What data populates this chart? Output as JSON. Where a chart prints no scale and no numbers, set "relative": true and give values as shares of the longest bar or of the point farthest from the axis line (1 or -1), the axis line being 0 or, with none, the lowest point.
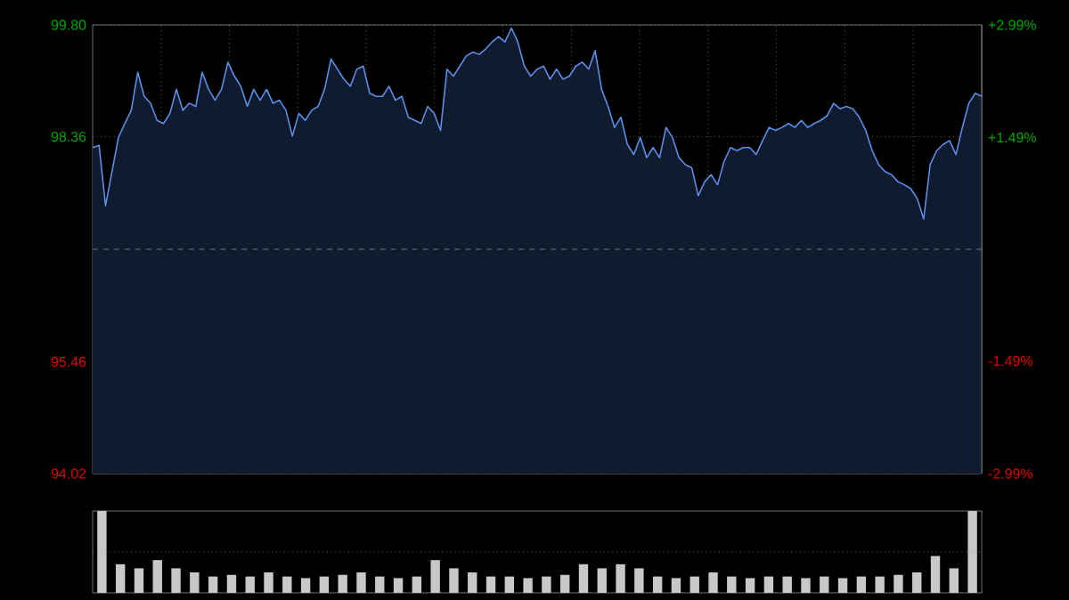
{
  "chart_data": [
    {
      "type": "area",
      "categories": [
        null,
        null,
        null,
        null,
        null,
        null,
        null,
        null,
        null,
        null,
        null,
        null,
        null,
        null,
        null,
        null,
        null,
        null,
        null,
        null,
        null,
        null,
        null,
        null,
        null,
        null,
        null,
        null,
        null,
        null,
        null,
        null,
        null,
        null,
        null,
        null,
        null,
        null,
        null,
        null,
        null,
        null,
        null,
        null,
        null,
        null,
        null,
        null,
        null,
        null,
        null,
        null,
        null,
        null,
        null,
        null,
        null,
        null,
        null,
        null,
        null,
        null,
        null,
        null,
        null,
        null,
        null,
        null,
        null,
        null,
        null,
        null,
        null,
        null,
        null,
        null,
        null,
        null,
        null,
        null,
        null,
        null,
        null,
        null,
        null,
        null,
        null,
        null,
        null,
        null,
        null,
        null,
        null,
        null,
        null,
        null,
        null,
        null,
        null,
        null,
        null,
        null,
        null,
        null,
        null,
        null,
        null,
        null,
        null,
        null,
        null,
        null,
        null,
        null,
        null,
        null,
        null,
        null,
        null,
        null,
        null,
        null,
        null,
        null,
        null,
        null,
        null,
        null,
        null,
        null,
        null,
        null,
        null,
        null,
        null,
        null,
        null,
        null,
        null
      ],
      "values": [
        98.22,
        98.25,
        97.47,
        97.91,
        98.35,
        98.53,
        98.7,
        99.19,
        98.88,
        98.79,
        98.57,
        98.53,
        98.66,
        98.97,
        98.7,
        98.79,
        98.75,
        99.19,
        98.97,
        98.83,
        98.97,
        99.32,
        99.14,
        99.01,
        98.75,
        98.97,
        98.83,
        98.97,
        98.79,
        98.83,
        98.7,
        98.37,
        98.66,
        98.57,
        98.7,
        98.75,
        98.97,
        99.36,
        99.23,
        99.1,
        99.01,
        99.23,
        99.27,
        98.92,
        98.88,
        98.88,
        99.01,
        98.83,
        98.88,
        98.61,
        98.57,
        98.53,
        98.75,
        98.66,
        98.44,
        99.23,
        99.14,
        99.27,
        99.4,
        99.45,
        99.42,
        99.49,
        99.58,
        99.65,
        99.58,
        99.76,
        99.58,
        99.27,
        99.14,
        99.23,
        99.27,
        99.1,
        99.23,
        99.1,
        99.14,
        99.27,
        99.32,
        99.23,
        99.47,
        98.97,
        98.75,
        98.48,
        98.61,
        98.26,
        98.13,
        98.35,
        98.09,
        98.22,
        98.09,
        98.48,
        98.35,
        98.09,
        98.0,
        97.96,
        97.6,
        97.78,
        97.87,
        97.74,
        98.04,
        98.22,
        98.18,
        98.22,
        98.22,
        98.13,
        98.31,
        98.48,
        98.44,
        98.48,
        98.53,
        98.48,
        98.57,
        98.48,
        98.53,
        98.57,
        98.63,
        98.79,
        98.72,
        98.75,
        98.72,
        98.61,
        98.44,
        98.18,
        98.0,
        97.91,
        97.87,
        97.78,
        97.74,
        97.69,
        97.56,
        97.3,
        98.0,
        98.18,
        98.26,
        98.31,
        98.13,
        98.48,
        98.79,
        98.92,
        98.88
      ],
      "color": "#5b8ee6",
      "ylim": [
        94.02,
        99.8
      ],
      "yticks": [
        94.02,
        95.46,
        98.36,
        {
          "value": 99.8,
          "label": "99.80"
        }
      ],
      "y2lim": [
        -2.99,
        2.99
      ],
      "y2ticks": [
        {
          "value": -2.99,
          "label": "-2.99%"
        },
        {
          "value": -1.49,
          "label": "-1.49%"
        },
        {
          "value": 1.49,
          "label": "+1.49%"
        },
        {
          "value": 2.99,
          "label": "+2.99%"
        }
      ],
      "ref_lines": [
        {
          "axis": "y",
          "value": 96.91,
          "line_style": "dashed"
        }
      ],
      "grid": true
    },
    {
      "type": "bar",
      "relative": true,
      "color": "#c8c8c8",
      "ref_lines": [
        {
          "axis": "y",
          "value": 0.5,
          "line_style": "dotted"
        }
      ],
      "categories": [
        null,
        null,
        null,
        null,
        null,
        null,
        null,
        null,
        null,
        null,
        null,
        null,
        null,
        null,
        null,
        null,
        null,
        null,
        null,
        null,
        null,
        null,
        null,
        null,
        null,
        null,
        null,
        null,
        null,
        null,
        null,
        null,
        null,
        null,
        null,
        null,
        null,
        null,
        null,
        null,
        null,
        null,
        null,
        null,
        null,
        null,
        null,
        null
      ],
      "values": [
        1.0,
        0.35,
        0.3,
        0.4,
        0.3,
        0.25,
        0.2,
        0.22,
        0.2,
        0.25,
        0.2,
        0.18,
        0.2,
        0.22,
        0.25,
        0.2,
        0.18,
        0.2,
        0.4,
        0.3,
        0.25,
        0.2,
        0.2,
        0.18,
        0.2,
        0.22,
        0.35,
        0.3,
        0.35,
        0.3,
        0.2,
        0.18,
        0.2,
        0.25,
        0.2,
        0.18,
        0.2,
        0.2,
        0.18,
        0.2,
        0.18,
        0.2,
        0.2,
        0.22,
        0.25,
        0.45,
        0.3,
        1.0
      ]
    }
  ]
}
